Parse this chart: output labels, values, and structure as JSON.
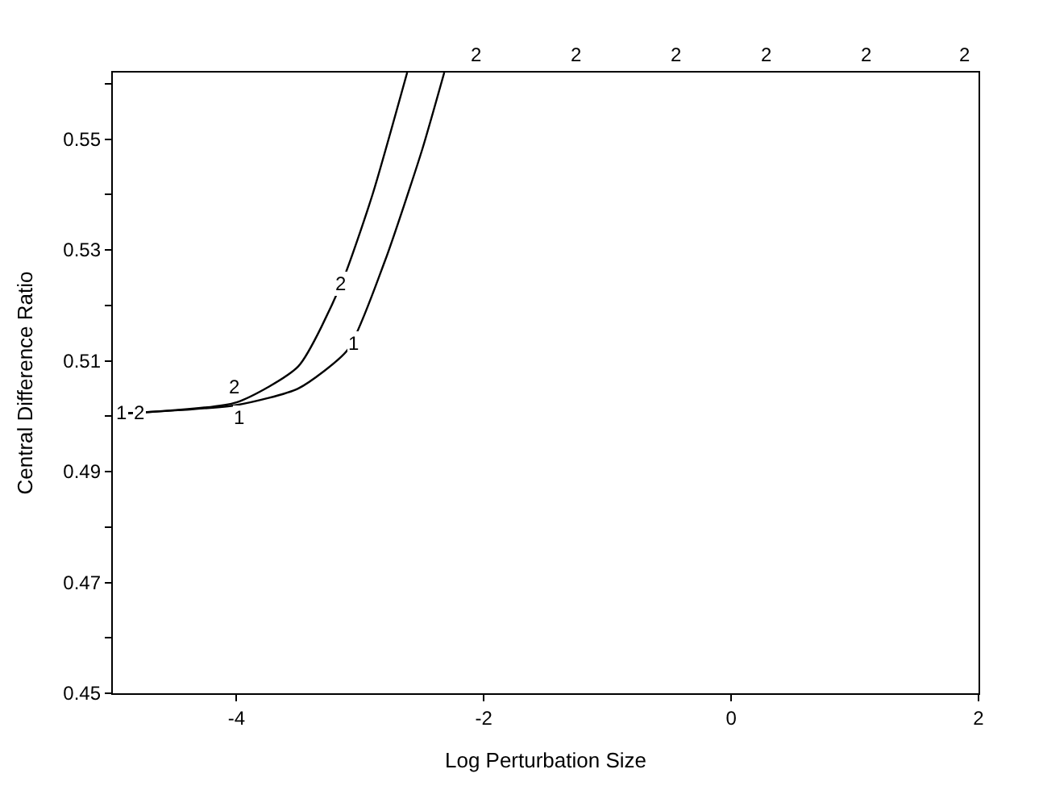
{
  "chart_data": {
    "type": "line",
    "xlabel": "Log Perturbation Size",
    "ylabel": "Central Difference Ratio",
    "xlim": [
      -5,
      2
    ],
    "xticks": [
      -4,
      -2,
      0,
      2
    ],
    "ylim": [
      0.45,
      0.562
    ],
    "yticks": [
      0.45,
      {
        "value": 0.46,
        "label": null
      },
      0.47,
      {
        "value": 0.48,
        "label": null
      },
      0.49,
      {
        "value": 0.5,
        "label": null
      },
      0.51,
      {
        "value": 0.52,
        "label": null
      },
      0.53,
      {
        "value": 0.54,
        "label": null
      },
      0.55,
      {
        "value": 0.56,
        "label": null
      }
    ],
    "marker": "none",
    "line_style": "solid",
    "series": [
      {
        "color": "#000000",
        "x": [
          -4.9,
          -4.0,
          -3.5,
          -3.1,
          -2.8,
          -2.5,
          -2.32
        ],
        "values": [
          0.5005,
          0.502,
          0.505,
          0.512,
          0.528,
          0.548,
          0.562
        ]
      },
      {
        "color": "#000000",
        "x": [
          -4.9,
          -4.0,
          -3.5,
          -3.15,
          -2.9,
          -2.62
        ],
        "values": [
          0.5005,
          0.5025,
          0.509,
          0.524,
          0.54,
          0.562
        ]
      }
    ],
    "annotations": [
      {
        "text": "1",
        "x": -4.93,
        "y": 0.5005
      },
      {
        "text": "2",
        "x": -4.78,
        "y": 0.5006
      },
      {
        "text": "1",
        "x": -3.98,
        "y": 0.4998
      },
      {
        "text": "2",
        "x": -4.02,
        "y": 0.5052
      },
      {
        "text": "1",
        "x": -3.05,
        "y": 0.513
      },
      {
        "text": "2",
        "x": -3.15,
        "y": 0.524
      },
      "2",
      "2",
      "2",
      "2",
      "2",
      "2"
    ]
  }
}
